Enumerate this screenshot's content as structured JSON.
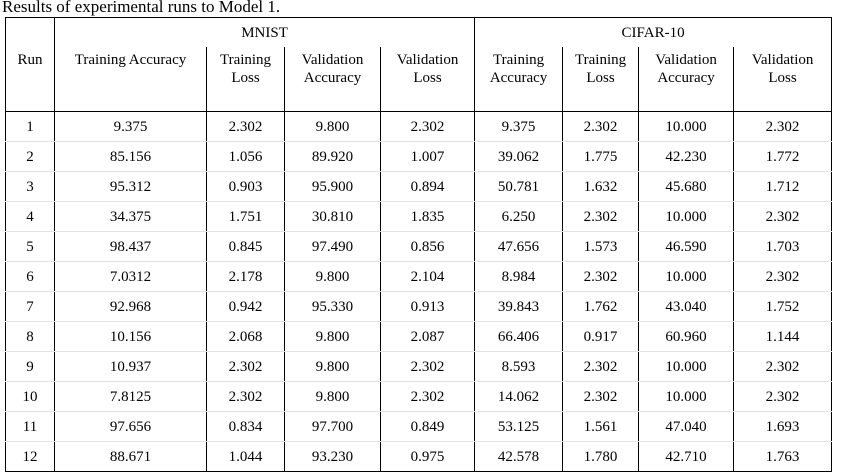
{
  "caption": "Results of experimental runs to Model 1.",
  "groups": [
    "MNIST",
    "CIFAR-10"
  ],
  "run_header": "Run",
  "metric_headers": [
    [
      "Training Accuracy"
    ],
    [
      "Training",
      "Loss"
    ],
    [
      "Validation",
      "Accuracy"
    ],
    [
      "Validation",
      "Loss"
    ],
    [
      "Training",
      "Accuracy"
    ],
    [
      "Training",
      "Loss"
    ],
    [
      "Validation",
      "Accuracy"
    ],
    [
      "Validation",
      "Loss"
    ]
  ],
  "rows": [
    [
      "1",
      "9.375",
      "2.302",
      "9.800",
      "2.302",
      "9.375",
      "2.302",
      "10.000",
      "2.302"
    ],
    [
      "2",
      "85.156",
      "1.056",
      "89.920",
      "1.007",
      "39.062",
      "1.775",
      "42.230",
      "1.772"
    ],
    [
      "3",
      "95.312",
      "0.903",
      "95.900",
      "0.894",
      "50.781",
      "1.632",
      "45.680",
      "1.712"
    ],
    [
      "4",
      "34.375",
      "1.751",
      "30.810",
      "1.835",
      "6.250",
      "2.302",
      "10.000",
      "2.302"
    ],
    [
      "5",
      "98.437",
      "0.845",
      "97.490",
      "0.856",
      "47.656",
      "1.573",
      "46.590",
      "1.703"
    ],
    [
      "6",
      "7.0312",
      "2.178",
      "9.800",
      "2.104",
      "8.984",
      "2.302",
      "10.000",
      "2.302"
    ],
    [
      "7",
      "92.968",
      "0.942",
      "95.330",
      "0.913",
      "39.843",
      "1.762",
      "43.040",
      "1.752"
    ],
    [
      "8",
      "10.156",
      "2.068",
      "9.800",
      "2.087",
      "66.406",
      "0.917",
      "60.960",
      "1.144"
    ],
    [
      "9",
      "10.937",
      "2.302",
      "9.800",
      "2.302",
      "8.593",
      "2.302",
      "10.000",
      "2.302"
    ],
    [
      "10",
      "7.8125",
      "2.302",
      "9.800",
      "2.302",
      "14.062",
      "2.302",
      "10.000",
      "2.302"
    ],
    [
      "11",
      "97.656",
      "0.834",
      "97.700",
      "0.849",
      "53.125",
      "1.561",
      "47.040",
      "1.693"
    ],
    [
      "12",
      "88.671",
      "1.044",
      "93.230",
      "0.975",
      "42.578",
      "1.780",
      "42.710",
      "1.763"
    ]
  ]
}
